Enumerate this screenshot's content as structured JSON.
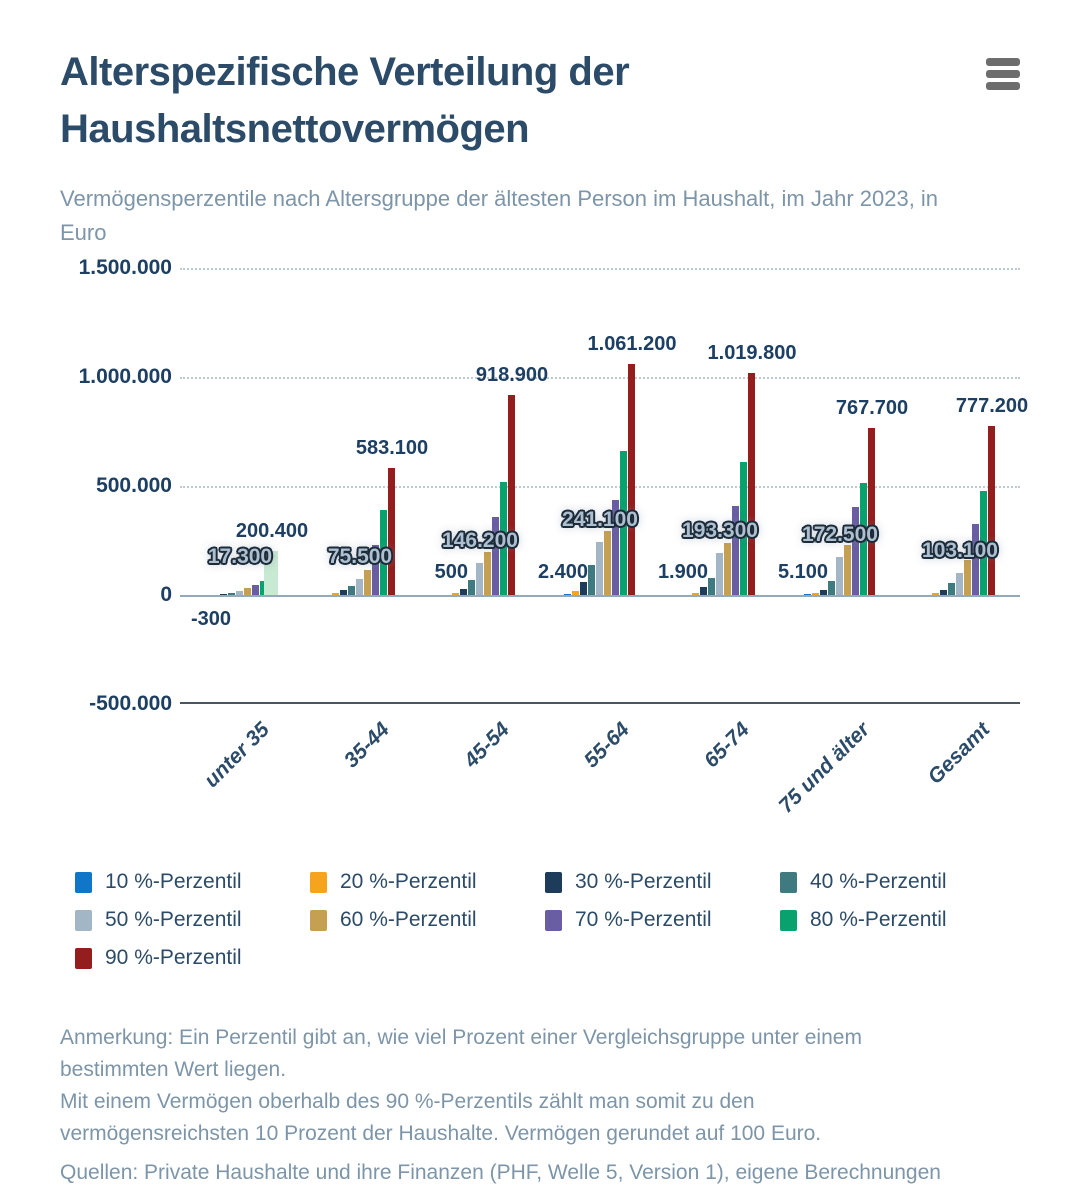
{
  "header": {
    "title": "Alterspezifische Verteilung der Haushaltsnettovermögen"
  },
  "subtitle": "Vermögensperzentile nach Altersgruppe der ältesten Person im Haushalt, im Jahr 2023, in Euro",
  "colors": {
    "title_text": "#2c4b68",
    "muted_text": "#7d95a8",
    "value_label_text": "#1d3f63",
    "highlight_bar": "#c8e9d2"
  },
  "chart_data": {
    "type": "bar",
    "title": "Alterspezifische Verteilung der Haushaltsnettovermögen",
    "subtitle": "Vermögensperzentile nach Altersgruppe der ältesten Person im Haushalt, im Jahr 2023, in Euro",
    "unit": "Euro",
    "categories": [
      "unter 35",
      "35-44",
      "45-54",
      "55-64",
      "65-74",
      "75 und älter",
      "Gesamt"
    ],
    "series": [
      {
        "name": "10 %-Perzentil",
        "color": "#1077c8",
        "values": [
          -300,
          0,
          500,
          2400,
          1900,
          5100,
          500
        ]
      },
      {
        "name": "20 %-Perzentil",
        "color": "#f6a41d",
        "values": [
          1000,
          11000,
          8000,
          19000,
          10000,
          10000,
          8000
        ]
      },
      {
        "name": "30 %-Perzentil",
        "color": "#1d3c5a",
        "values": [
          4000,
          23000,
          27000,
          58000,
          35000,
          24000,
          22000
        ]
      },
      {
        "name": "40 %-Perzentil",
        "color": "#3e7a80",
        "values": [
          10000,
          41000,
          69000,
          139000,
          78000,
          66000,
          57000
        ]
      },
      {
        "name": "50 %-Perzentil",
        "color": "#a3b6c5",
        "values": [
          17300,
          75500,
          146200,
          241100,
          193300,
          172500,
          103100
        ]
      },
      {
        "name": "60 %-Perzentil",
        "color": "#c6a052",
        "values": [
          31000,
          113000,
          198000,
          295000,
          240000,
          230000,
          160000
        ]
      },
      {
        "name": "70 %-Perzentil",
        "color": "#695da3",
        "values": [
          48000,
          230000,
          359000,
          437000,
          409000,
          402000,
          326000
        ]
      },
      {
        "name": "80 %-Perzentil",
        "color": "#07a26d",
        "values": [
          64000,
          388000,
          517000,
          661000,
          611000,
          512000,
          476000
        ]
      },
      {
        "name": "90 %-Perzentil",
        "color": "#941d1d",
        "values": [
          200400,
          583100,
          918900,
          1061200,
          1019800,
          767700,
          777200
        ]
      }
    ],
    "data_labels": [
      {
        "category": "unter 35",
        "p10": "-300",
        "p50": "17.300",
        "p90": "200.400",
        "p90_highlight": true
      },
      {
        "category": "35-44",
        "p10": null,
        "p50": "75.500",
        "p90": "583.100",
        "p90_highlight": false
      },
      {
        "category": "45-54",
        "p10": "500",
        "p50": "146.200",
        "p90": "918.900",
        "p90_highlight": false
      },
      {
        "category": "55-64",
        "p10": "2.400",
        "p50": "241.100",
        "p90": "1.061.200",
        "p90_highlight": false
      },
      {
        "category": "65-74",
        "p10": "1.900",
        "p50": "193.300",
        "p90": "1.019.800",
        "p90_highlight": false
      },
      {
        "category": "75 und älter",
        "p10": "5.100",
        "p50": "172.500",
        "p90": "767.700",
        "p90_highlight": false
      },
      {
        "category": "Gesamt",
        "p10": null,
        "p50": "103.100",
        "p90": "777.200",
        "p90_highlight": false
      }
    ],
    "y_ticks": [
      "1.500.000",
      "1.000.000",
      "500.000",
      "0",
      "-500.000"
    ],
    "ylim": [
      -500000,
      1500000
    ],
    "grid": "dotted horizontal lines at labeled ticks",
    "legend_position": "bottom"
  },
  "notes": {
    "lines": [
      "Anmerkung: Ein Perzentil gibt an, wie viel Prozent einer Vergleichsgruppe unter einem",
      "bestimmten Wert liegen.",
      "Mit einem Vermögen oberhalb des 90 %-Perzentils zählt man somit zu den",
      "vermögensreichsten 10 Prozent der Haushalte. Vermögen gerundet auf 100 Euro.",
      "Quellen: Private Haushalte und ihre Finanzen (PHF, Welle 5, Version 1), eigene Berechnungen"
    ]
  }
}
